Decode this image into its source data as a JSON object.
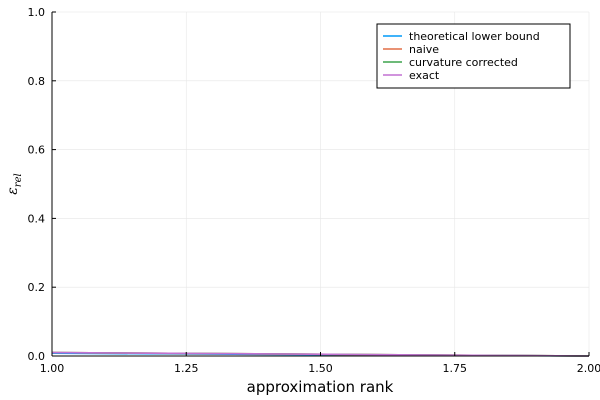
{
  "chart_data": {
    "type": "line",
    "title": "",
    "xlabel": "approximation rank",
    "ylabel": "ε_rel",
    "ylabel_main": "ε",
    "ylabel_sub": "rel",
    "xlim": [
      1.0,
      2.0
    ],
    "ylim": [
      0.0,
      1.0
    ],
    "xticks": [
      1.0,
      1.25,
      1.5,
      1.75,
      2.0
    ],
    "xtick_labels": [
      "1.00",
      "1.25",
      "1.50",
      "1.75",
      "2.00"
    ],
    "yticks": [
      0.0,
      0.2,
      0.4,
      0.6,
      0.8,
      1.0
    ],
    "ytick_labels": [
      "0.0",
      "0.2",
      "0.4",
      "0.6",
      "0.8",
      "1.0"
    ],
    "grid": true,
    "legend_position": "top-right",
    "x": [
      1.0,
      2.0
    ],
    "series": [
      {
        "name": "theoretical lower bound",
        "color": "#009af9",
        "values": [
          0.008,
          0.0
        ]
      },
      {
        "name": "naive",
        "color": "#e26f46",
        "values": [
          0.01,
          0.0
        ]
      },
      {
        "name": "curvature corrected",
        "color": "#3da44d",
        "values": [
          0.01,
          0.0
        ]
      },
      {
        "name": "exact",
        "color": "#c271d2",
        "values": [
          0.01,
          0.0
        ]
      }
    ]
  }
}
